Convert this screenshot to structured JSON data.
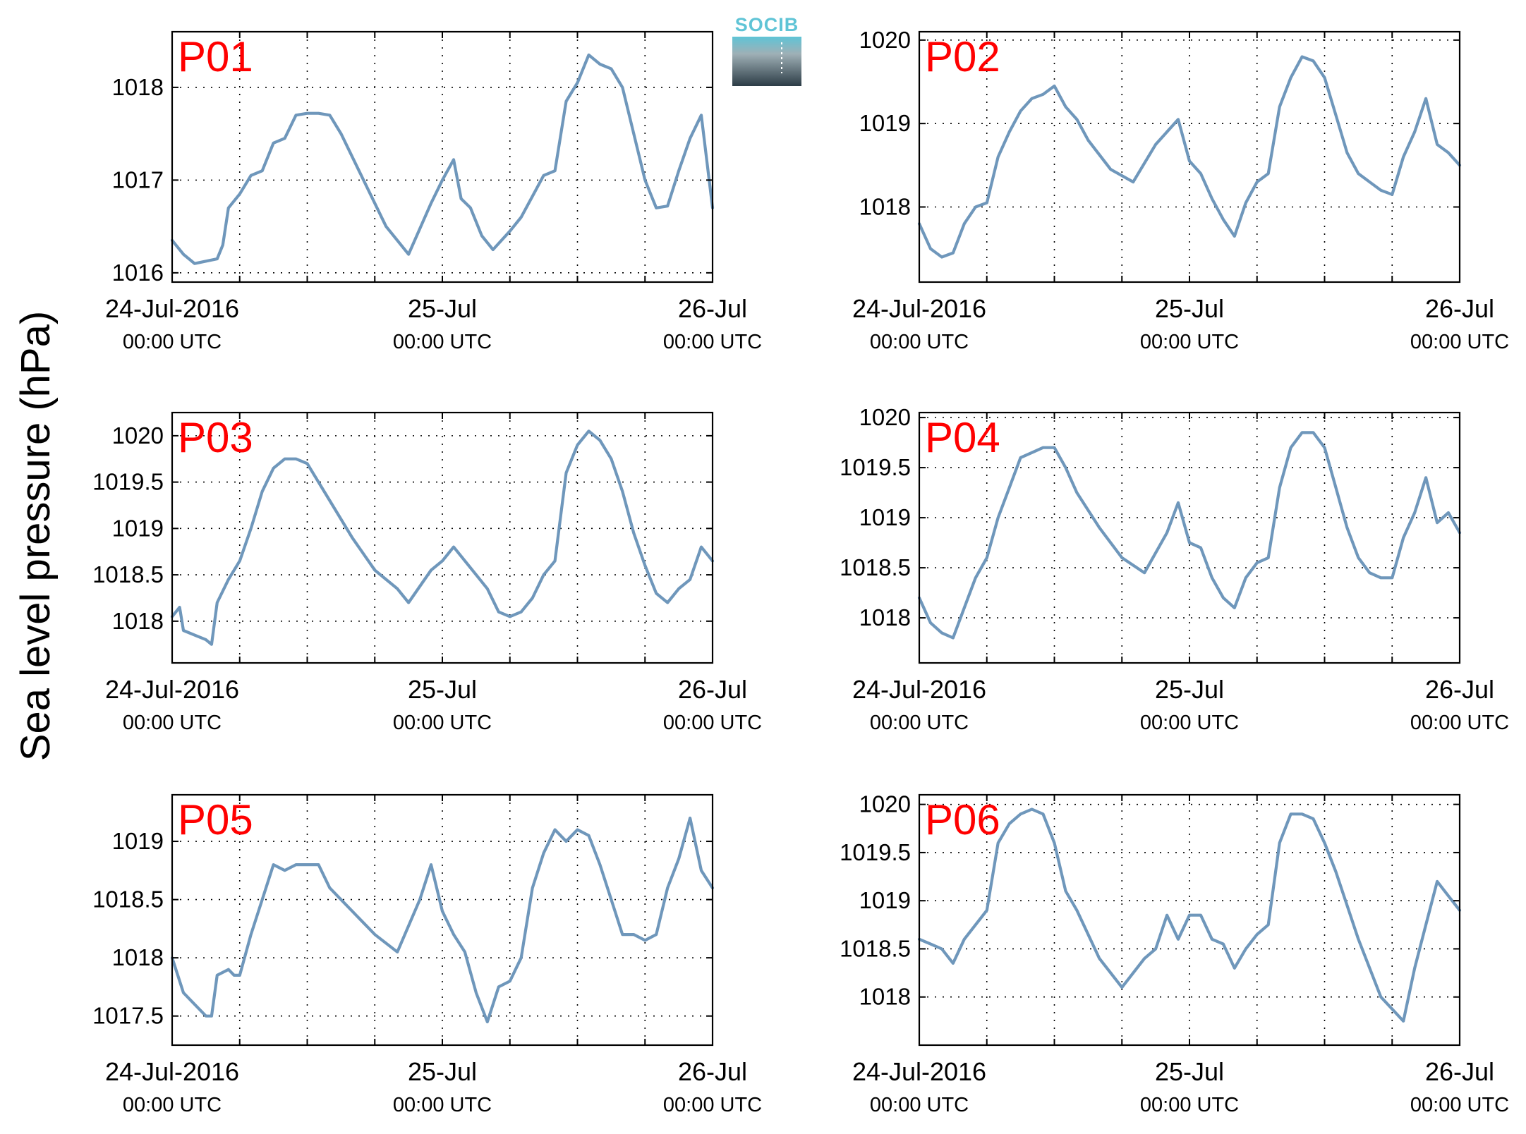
{
  "ylabel": "Sea level pressure (hPa)",
  "logo": {
    "text": "SOCIB"
  },
  "colors": {
    "series": "#6f97bb",
    "panel_label": "#ff0000",
    "logo_top": "#5fc4d6",
    "logo_bottom": "#2c3c46"
  },
  "x_tick_labels": [
    {
      "main": "24-Jul-2016",
      "sub": "00:00 UTC"
    },
    {
      "main": "25-Jul",
      "sub": "00:00 UTC"
    },
    {
      "main": "26-Jul",
      "sub": "00:00 UTC"
    }
  ],
  "chart_data": [
    {
      "type": "line",
      "title": "P01",
      "xlim": [
        "2016-07-24T00:00",
        "2016-07-26T00:00"
      ],
      "ylim": [
        1015.9,
        1018.6
      ],
      "yticks": [
        1016,
        1017,
        1018
      ],
      "ytick_labels": [
        "1016",
        "1017",
        "1018"
      ],
      "grid": true,
      "x_grid_hours": [
        0,
        6,
        12,
        18,
        24,
        30,
        36,
        42,
        48
      ],
      "series": [
        {
          "x": [
            "2016-07-24T00:00",
            "2016-07-24T01:00",
            "2016-07-24T02:00",
            "2016-07-24T04:00",
            "2016-07-24T04:30",
            "2016-07-24T05:00",
            "2016-07-24T06:00",
            "2016-07-24T07:00",
            "2016-07-24T08:00",
            "2016-07-24T09:00",
            "2016-07-24T10:00",
            "2016-07-24T11:00",
            "2016-07-24T12:00",
            "2016-07-24T13:00",
            "2016-07-24T14:00",
            "2016-07-24T15:00",
            "2016-07-24T17:00",
            "2016-07-24T19:00",
            "2016-07-24T21:00",
            "2016-07-24T23:00",
            "2016-07-25T00:00",
            "2016-07-25T01:00",
            "2016-07-25T01:40",
            "2016-07-25T02:30",
            "2016-07-25T03:30",
            "2016-07-25T04:30",
            "2016-07-25T06:00",
            "2016-07-25T07:00",
            "2016-07-25T09:00",
            "2016-07-25T10:00",
            "2016-07-25T11:00",
            "2016-07-25T12:00",
            "2016-07-25T13:00",
            "2016-07-25T14:00",
            "2016-07-25T15:00",
            "2016-07-25T16:00",
            "2016-07-25T17:00",
            "2016-07-25T18:00",
            "2016-07-25T19:00",
            "2016-07-25T20:00",
            "2016-07-25T21:00",
            "2016-07-25T22:00",
            "2016-07-25T23:00",
            "2016-07-26T00:00"
          ],
          "y": [
            1016.35,
            1016.2,
            1016.1,
            1016.15,
            1016.3,
            1016.7,
            1016.85,
            1017.05,
            1017.1,
            1017.4,
            1017.45,
            1017.7,
            1017.72,
            1017.72,
            1017.7,
            1017.5,
            1017.0,
            1016.5,
            1016.2,
            1016.75,
            1017.0,
            1017.22,
            1016.8,
            1016.7,
            1016.4,
            1016.25,
            1016.45,
            1016.6,
            1017.05,
            1017.1,
            1017.85,
            1018.05,
            1018.35,
            1018.25,
            1018.2,
            1018.0,
            1017.5,
            1017.0,
            1016.7,
            1016.72,
            1017.1,
            1017.45,
            1017.7,
            1016.7
          ]
        }
      ]
    },
    {
      "type": "line",
      "title": "P02",
      "xlim": [
        "2016-07-24T00:00",
        "2016-07-26T00:00"
      ],
      "ylim": [
        1017.1,
        1020.1
      ],
      "yticks": [
        1018,
        1019,
        1020
      ],
      "ytick_labels": [
        "1018",
        "1019",
        "1020"
      ],
      "grid": true,
      "x_grid_hours": [
        0,
        6,
        12,
        18,
        24,
        30,
        36,
        42,
        48
      ],
      "series": [
        {
          "x": [
            "2016-07-24T00:00",
            "2016-07-24T01:00",
            "2016-07-24T02:00",
            "2016-07-24T03:00",
            "2016-07-24T04:00",
            "2016-07-24T05:00",
            "2016-07-24T06:00",
            "2016-07-24T07:00",
            "2016-07-24T08:00",
            "2016-07-24T09:00",
            "2016-07-24T10:00",
            "2016-07-24T11:00",
            "2016-07-24T12:00",
            "2016-07-24T13:00",
            "2016-07-24T14:00",
            "2016-07-24T15:00",
            "2016-07-24T17:00",
            "2016-07-24T19:00",
            "2016-07-24T21:00",
            "2016-07-24T23:00",
            "2016-07-25T00:00",
            "2016-07-25T01:00",
            "2016-07-25T02:00",
            "2016-07-25T03:00",
            "2016-07-25T04:00",
            "2016-07-25T05:00",
            "2016-07-25T06:00",
            "2016-07-25T07:00",
            "2016-07-25T08:00",
            "2016-07-25T09:00",
            "2016-07-25T10:00",
            "2016-07-25T11:00",
            "2016-07-25T12:00",
            "2016-07-25T13:00",
            "2016-07-25T14:00",
            "2016-07-25T15:00",
            "2016-07-25T16:00",
            "2016-07-25T17:00",
            "2016-07-25T18:00",
            "2016-07-25T19:00",
            "2016-07-25T20:00",
            "2016-07-25T21:00",
            "2016-07-25T22:00",
            "2016-07-25T23:00",
            "2016-07-26T00:00"
          ],
          "y": [
            1017.8,
            1017.5,
            1017.4,
            1017.45,
            1017.8,
            1018.0,
            1018.05,
            1018.6,
            1018.9,
            1019.15,
            1019.3,
            1019.35,
            1019.45,
            1019.2,
            1019.05,
            1018.8,
            1018.45,
            1018.3,
            1018.75,
            1019.05,
            1018.55,
            1018.4,
            1018.1,
            1017.85,
            1017.65,
            1018.05,
            1018.3,
            1018.4,
            1019.2,
            1019.55,
            1019.8,
            1019.75,
            1019.55,
            1019.1,
            1018.65,
            1018.4,
            1018.3,
            1018.2,
            1018.15,
            1018.6,
            1018.9,
            1019.3,
            1018.75,
            1018.65,
            1018.5
          ]
        }
      ]
    },
    {
      "type": "line",
      "title": "P03",
      "xlim": [
        "2016-07-24T00:00",
        "2016-07-26T00:00"
      ],
      "ylim": [
        1017.55,
        1020.25
      ],
      "yticks": [
        1018,
        1018.5,
        1019,
        1019.5,
        1020
      ],
      "ytick_labels": [
        "1018",
        "1018.5",
        "1019",
        "1019.5",
        "1020"
      ],
      "grid": true,
      "x_grid_hours": [
        0,
        6,
        12,
        18,
        24,
        30,
        36,
        42,
        48
      ],
      "series": [
        {
          "x": [
            "2016-07-24T00:00",
            "2016-07-24T00:40",
            "2016-07-24T01:00",
            "2016-07-24T02:00",
            "2016-07-24T03:00",
            "2016-07-24T03:30",
            "2016-07-24T04:00",
            "2016-07-24T05:00",
            "2016-07-24T06:00",
            "2016-07-24T07:00",
            "2016-07-24T08:00",
            "2016-07-24T09:00",
            "2016-07-24T10:00",
            "2016-07-24T11:00",
            "2016-07-24T12:00",
            "2016-07-24T14:00",
            "2016-07-24T16:00",
            "2016-07-24T18:00",
            "2016-07-24T20:00",
            "2016-07-24T21:00",
            "2016-07-24T23:00",
            "2016-07-25T00:00",
            "2016-07-25T01:00",
            "2016-07-25T03:00",
            "2016-07-25T04:00",
            "2016-07-25T05:00",
            "2016-07-25T06:00",
            "2016-07-25T07:00",
            "2016-07-25T08:00",
            "2016-07-25T09:00",
            "2016-07-25T10:00",
            "2016-07-25T11:00",
            "2016-07-25T12:00",
            "2016-07-25T13:00",
            "2016-07-25T14:00",
            "2016-07-25T15:00",
            "2016-07-25T16:00",
            "2016-07-25T17:00",
            "2016-07-25T18:00",
            "2016-07-25T19:00",
            "2016-07-25T20:00",
            "2016-07-25T21:00",
            "2016-07-25T22:00",
            "2016-07-25T23:00",
            "2016-07-26T00:00"
          ],
          "y": [
            1018.05,
            1018.15,
            1017.9,
            1017.85,
            1017.8,
            1017.75,
            1018.2,
            1018.45,
            1018.65,
            1019.0,
            1019.4,
            1019.65,
            1019.75,
            1019.75,
            1019.7,
            1019.3,
            1018.9,
            1018.55,
            1018.35,
            1018.2,
            1018.55,
            1018.65,
            1018.8,
            1018.5,
            1018.35,
            1018.1,
            1018.05,
            1018.1,
            1018.25,
            1018.5,
            1018.65,
            1019.6,
            1019.9,
            1020.05,
            1019.95,
            1019.75,
            1019.4,
            1018.95,
            1018.6,
            1018.3,
            1018.2,
            1018.35,
            1018.45,
            1018.8,
            1018.65
          ]
        }
      ]
    },
    {
      "type": "line",
      "title": "P04",
      "xlim": [
        "2016-07-24T00:00",
        "2016-07-26T00:00"
      ],
      "ylim": [
        1017.55,
        1020.05
      ],
      "yticks": [
        1018,
        1018.5,
        1019,
        1019.5,
        1020
      ],
      "ytick_labels": [
        "1018",
        "1018.5",
        "1019",
        "1019.5",
        "1020"
      ],
      "grid": true,
      "x_grid_hours": [
        0,
        6,
        12,
        18,
        24,
        30,
        36,
        42,
        48
      ],
      "series": [
        {
          "x": [
            "2016-07-24T00:00",
            "2016-07-24T01:00",
            "2016-07-24T02:00",
            "2016-07-24T03:00",
            "2016-07-24T04:00",
            "2016-07-24T05:00",
            "2016-07-24T06:00",
            "2016-07-24T07:00",
            "2016-07-24T08:00",
            "2016-07-24T09:00",
            "2016-07-24T10:00",
            "2016-07-24T11:00",
            "2016-07-24T12:00",
            "2016-07-24T13:00",
            "2016-07-24T14:00",
            "2016-07-24T16:00",
            "2016-07-24T18:00",
            "2016-07-24T20:00",
            "2016-07-24T22:00",
            "2016-07-24T23:00",
            "2016-07-25T00:00",
            "2016-07-25T01:00",
            "2016-07-25T02:00",
            "2016-07-25T03:00",
            "2016-07-25T04:00",
            "2016-07-25T05:00",
            "2016-07-25T06:00",
            "2016-07-25T07:00",
            "2016-07-25T08:00",
            "2016-07-25T09:00",
            "2016-07-25T10:00",
            "2016-07-25T11:00",
            "2016-07-25T12:00",
            "2016-07-25T13:00",
            "2016-07-25T14:00",
            "2016-07-25T15:00",
            "2016-07-25T16:00",
            "2016-07-25T17:00",
            "2016-07-25T18:00",
            "2016-07-25T19:00",
            "2016-07-25T20:00",
            "2016-07-25T21:00",
            "2016-07-25T22:00",
            "2016-07-25T23:00",
            "2016-07-26T00:00"
          ],
          "y": [
            1018.2,
            1017.95,
            1017.85,
            1017.8,
            1018.1,
            1018.4,
            1018.6,
            1019.0,
            1019.3,
            1019.6,
            1019.65,
            1019.7,
            1019.7,
            1019.5,
            1019.25,
            1018.9,
            1018.6,
            1018.45,
            1018.85,
            1019.15,
            1018.75,
            1018.7,
            1018.4,
            1018.2,
            1018.1,
            1018.4,
            1018.55,
            1018.6,
            1019.3,
            1019.7,
            1019.85,
            1019.85,
            1019.7,
            1019.3,
            1018.9,
            1018.6,
            1018.45,
            1018.4,
            1018.4,
            1018.8,
            1019.05,
            1019.4,
            1018.95,
            1019.05,
            1018.85
          ]
        }
      ]
    },
    {
      "type": "line",
      "title": "P05",
      "xlim": [
        "2016-07-24T00:00",
        "2016-07-26T00:00"
      ],
      "ylim": [
        1017.25,
        1019.4
      ],
      "yticks": [
        1017.5,
        1018,
        1018.5,
        1019
      ],
      "ytick_labels": [
        "1017.5",
        "1018",
        "1018.5",
        "1019"
      ],
      "grid": true,
      "x_grid_hours": [
        0,
        6,
        12,
        18,
        24,
        30,
        36,
        42,
        48
      ],
      "series": [
        {
          "x": [
            "2016-07-24T00:00",
            "2016-07-24T01:00",
            "2016-07-24T02:00",
            "2016-07-24T03:00",
            "2016-07-24T03:30",
            "2016-07-24T04:00",
            "2016-07-24T05:00",
            "2016-07-24T05:30",
            "2016-07-24T06:00",
            "2016-07-24T07:00",
            "2016-07-24T08:00",
            "2016-07-24T09:00",
            "2016-07-24T10:00",
            "2016-07-24T11:00",
            "2016-07-24T12:00",
            "2016-07-24T13:00",
            "2016-07-24T14:00",
            "2016-07-24T16:00",
            "2016-07-24T18:00",
            "2016-07-24T20:00",
            "2016-07-24T22:00",
            "2016-07-24T23:00",
            "2016-07-25T00:00",
            "2016-07-25T01:00",
            "2016-07-25T02:00",
            "2016-07-25T03:00",
            "2016-07-25T04:00",
            "2016-07-25T05:00",
            "2016-07-25T06:00",
            "2016-07-25T07:00",
            "2016-07-25T08:00",
            "2016-07-25T09:00",
            "2016-07-25T10:00",
            "2016-07-25T11:00",
            "2016-07-25T12:00",
            "2016-07-25T13:00",
            "2016-07-25T14:00",
            "2016-07-25T15:00",
            "2016-07-25T16:00",
            "2016-07-25T17:00",
            "2016-07-25T18:00",
            "2016-07-25T19:00",
            "2016-07-25T20:00",
            "2016-07-25T21:00",
            "2016-07-25T22:00",
            "2016-07-25T23:00",
            "2016-07-26T00:00"
          ],
          "y": [
            1018.0,
            1017.7,
            1017.6,
            1017.5,
            1017.5,
            1017.85,
            1017.9,
            1017.85,
            1017.85,
            1018.2,
            1018.5,
            1018.8,
            1018.75,
            1018.8,
            1018.8,
            1018.8,
            1018.6,
            1018.4,
            1018.2,
            1018.05,
            1018.5,
            1018.8,
            1018.4,
            1018.2,
            1018.05,
            1017.7,
            1017.45,
            1017.75,
            1017.8,
            1018.0,
            1018.6,
            1018.9,
            1019.1,
            1019.0,
            1019.1,
            1019.05,
            1018.8,
            1018.5,
            1018.2,
            1018.2,
            1018.15,
            1018.2,
            1018.6,
            1018.85,
            1019.2,
            1018.75,
            1018.6
          ]
        }
      ]
    },
    {
      "type": "line",
      "title": "P06",
      "xlim": [
        "2016-07-24T00:00",
        "2016-07-26T00:00"
      ],
      "ylim": [
        1017.5,
        1020.1
      ],
      "yticks": [
        1018,
        1018.5,
        1019,
        1019.5,
        1020
      ],
      "ytick_labels": [
        "1018",
        "1018.5",
        "1019",
        "1019.5",
        "1020"
      ],
      "grid": true,
      "x_grid_hours": [
        0,
        6,
        12,
        18,
        24,
        30,
        36,
        42,
        48
      ],
      "series": [
        {
          "x": [
            "2016-07-24T00:00",
            "2016-07-24T01:00",
            "2016-07-24T02:00",
            "2016-07-24T03:00",
            "2016-07-24T04:00",
            "2016-07-24T05:00",
            "2016-07-24T06:00",
            "2016-07-24T07:00",
            "2016-07-24T08:00",
            "2016-07-24T09:00",
            "2016-07-24T10:00",
            "2016-07-24T11:00",
            "2016-07-24T12:00",
            "2016-07-24T13:00",
            "2016-07-24T14:00",
            "2016-07-24T16:00",
            "2016-07-24T18:00",
            "2016-07-24T20:00",
            "2016-07-24T21:00",
            "2016-07-24T22:00",
            "2016-07-24T23:00",
            "2016-07-25T00:00",
            "2016-07-25T01:00",
            "2016-07-25T02:00",
            "2016-07-25T03:00",
            "2016-07-25T04:00",
            "2016-07-25T05:00",
            "2016-07-25T06:00",
            "2016-07-25T07:00",
            "2016-07-25T08:00",
            "2016-07-25T09:00",
            "2016-07-25T10:00",
            "2016-07-25T11:00",
            "2016-07-25T12:00",
            "2016-07-25T13:00",
            "2016-07-25T15:00",
            "2016-07-25T17:00",
            "2016-07-25T19:00",
            "2016-07-25T20:00",
            "2016-07-25T21:00",
            "2016-07-25T22:00",
            "2016-07-25T23:00",
            "2016-07-26T00:00"
          ],
          "y": [
            1018.6,
            1018.55,
            1018.5,
            1018.35,
            1018.6,
            1018.75,
            1018.9,
            1019.6,
            1019.8,
            1019.9,
            1019.95,
            1019.9,
            1019.6,
            1019.1,
            1018.9,
            1018.4,
            1018.1,
            1018.4,
            1018.5,
            1018.85,
            1018.6,
            1018.85,
            1018.85,
            1018.6,
            1018.55,
            1018.3,
            1018.5,
            1018.65,
            1018.75,
            1019.6,
            1019.9,
            1019.9,
            1019.85,
            1019.6,
            1019.3,
            1018.6,
            1018.0,
            1017.75,
            1018.3,
            1018.75,
            1019.2,
            1019.05,
            1018.9
          ]
        }
      ]
    }
  ]
}
